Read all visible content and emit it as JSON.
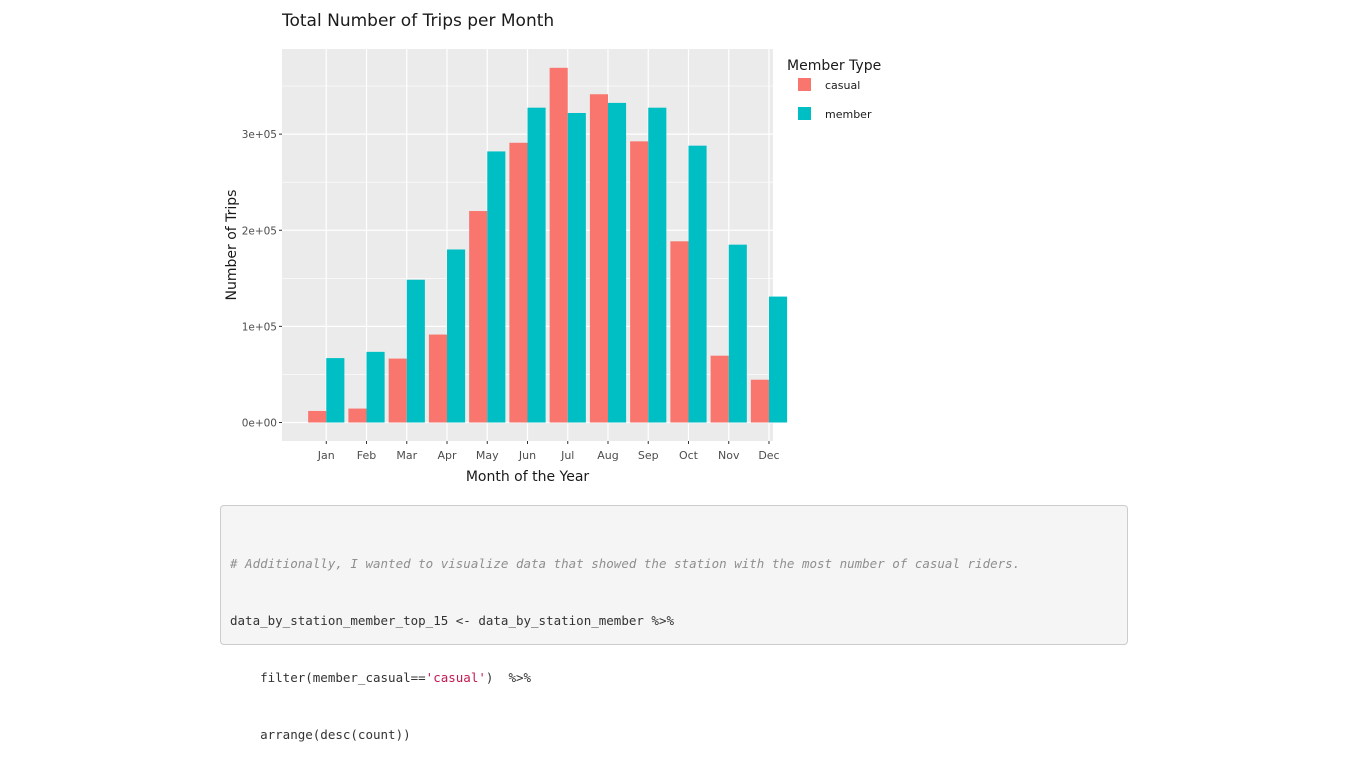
{
  "chart_data": {
    "type": "bar",
    "title": "Total Number of Trips per Month",
    "xlabel": "Month of the Year",
    "ylabel": "Number of Trips",
    "categories": [
      "Jan",
      "Feb",
      "Mar",
      "Apr",
      "May",
      "Jun",
      "Jul",
      "Aug",
      "Sep",
      "Oct",
      "Nov",
      "Dec"
    ],
    "series": [
      {
        "name": "casual",
        "color": "#F8766D",
        "values": [
          12000,
          14500,
          66500,
          91500,
          220000,
          291000,
          369000,
          341500,
          292500,
          188500,
          69500,
          44500
        ]
      },
      {
        "name": "member",
        "color": "#00BFC4",
        "values": [
          67000,
          73500,
          148500,
          180000,
          282000,
          327500,
          322000,
          332500,
          327500,
          288000,
          185000,
          131000
        ]
      }
    ],
    "yticks": [
      0,
      100000,
      200000,
      300000
    ],
    "ytick_labels": [
      "0e+00",
      "1e+05",
      "2e+05",
      "3e+05"
    ],
    "ylim": [
      0,
      387000
    ],
    "grid": true,
    "legend": {
      "title": "Member Type",
      "position": "right",
      "labels": [
        "casual",
        "member"
      ]
    }
  },
  "code": {
    "comment": "# Additionally, I wanted to visualize data that showed the station with the most number of casual riders.",
    "line2": "data_by_station_member_top_15 <- data_by_station_member %>%",
    "line3_pre": "    filter(member_casual==",
    "line3_str": "'casual'",
    "line3_post": ")  %>%",
    "line4": "    arrange(desc(count))"
  }
}
